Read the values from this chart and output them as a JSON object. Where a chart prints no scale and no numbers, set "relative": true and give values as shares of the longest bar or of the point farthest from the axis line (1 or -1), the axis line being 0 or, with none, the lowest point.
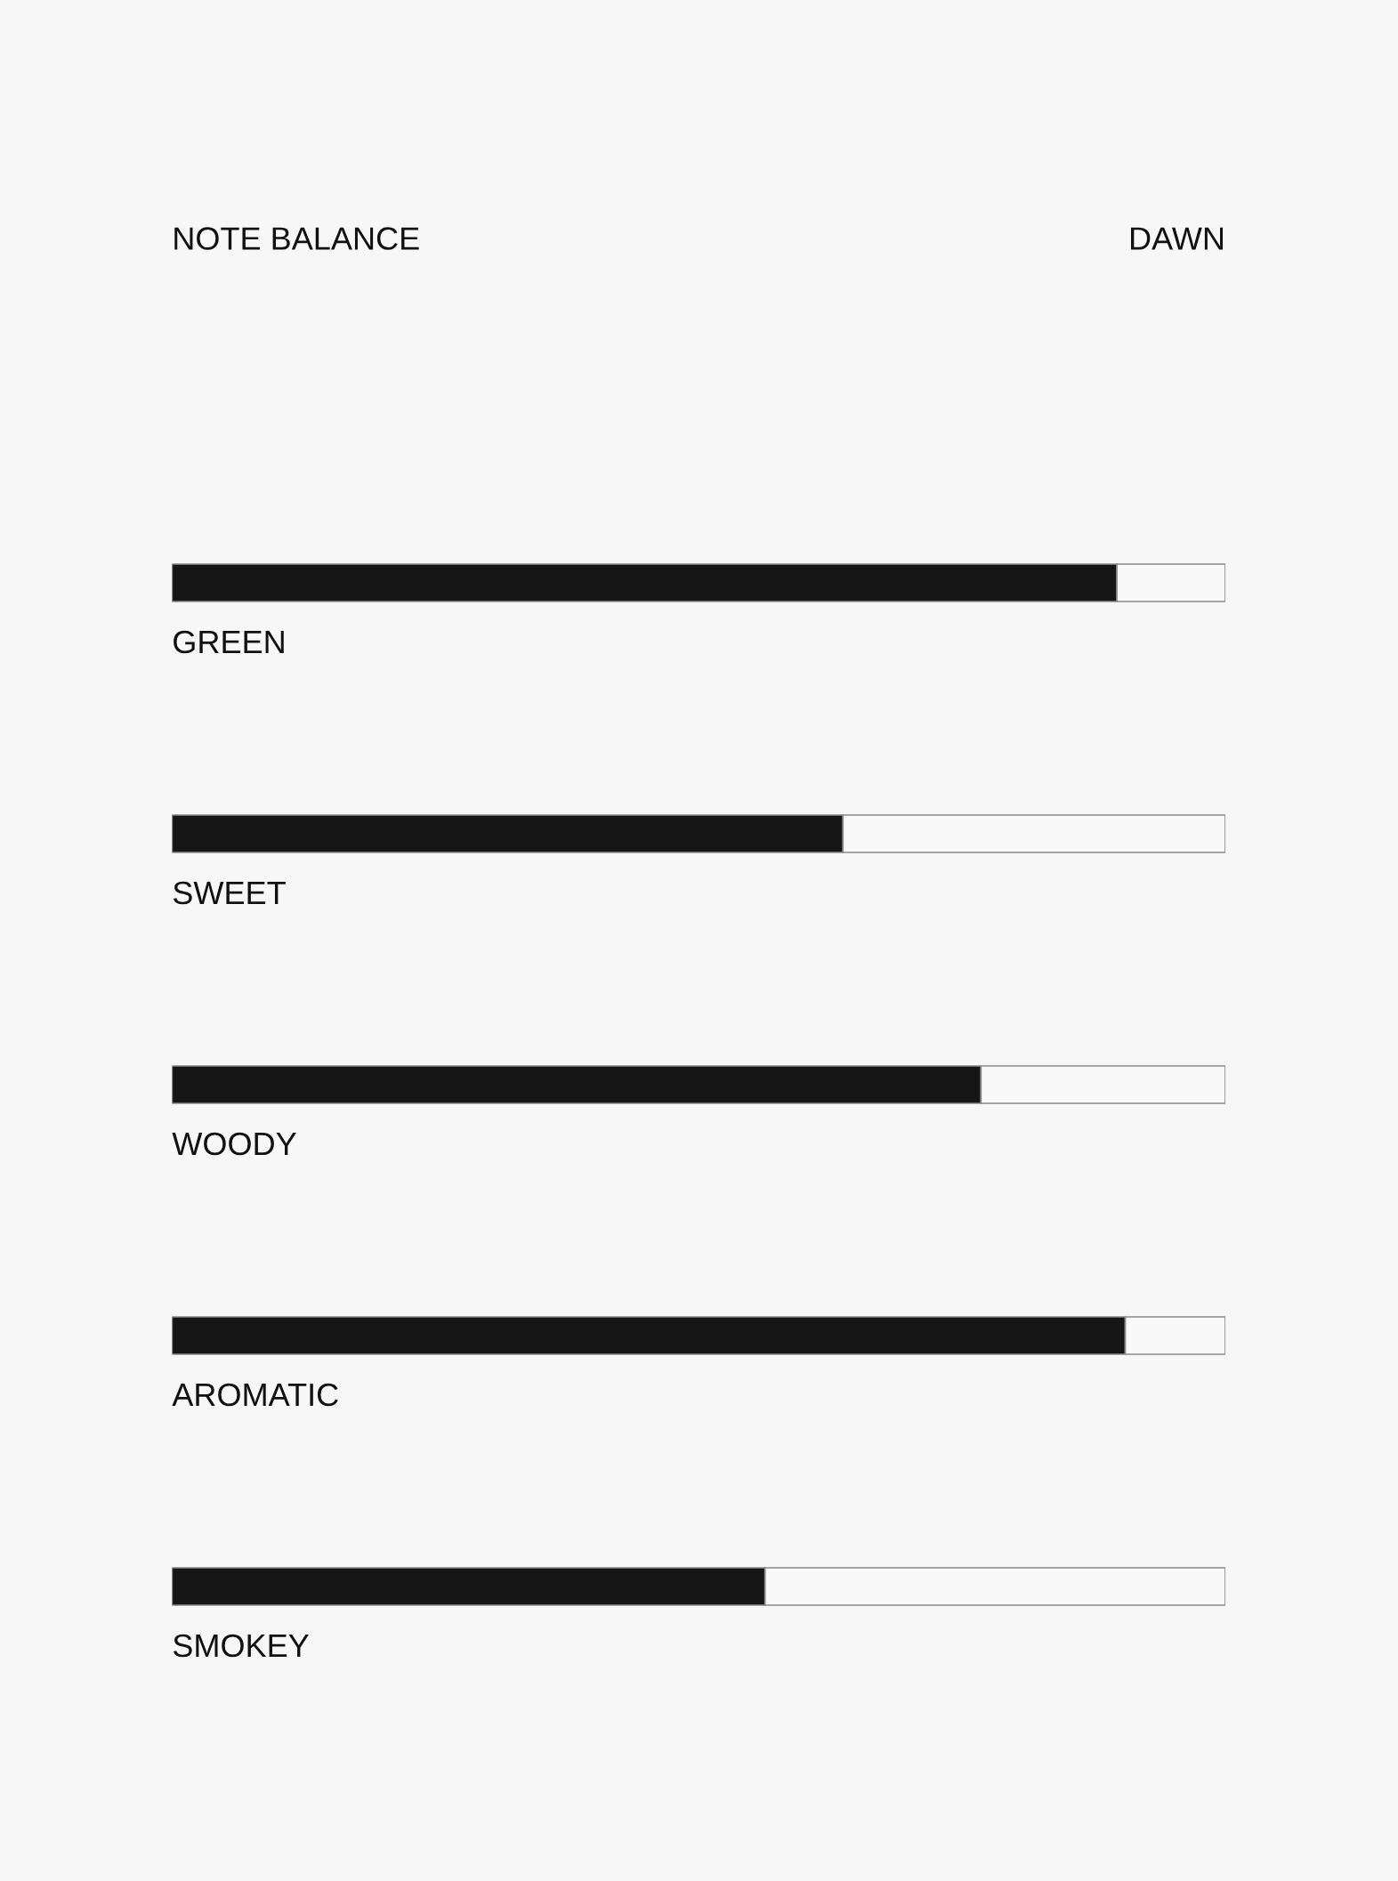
{
  "chart_data": {
    "type": "bar",
    "title": "NOTE BALANCE",
    "subtitle": "DAWN",
    "categories": [
      "GREEN",
      "SWEET",
      "WOODY",
      "AROMATIC",
      "SMOKEY"
    ],
    "orientation": "horizontal",
    "stacked": true,
    "relative": true,
    "series": [
      {
        "color": "#161616",
        "values": [
          0.897,
          0.637,
          0.768,
          0.905,
          0.563
        ]
      },
      {
        "color": "#f9f9f9",
        "values": [
          0.103,
          0.363,
          0.232,
          0.095,
          0.437
        ]
      }
    ]
  }
}
